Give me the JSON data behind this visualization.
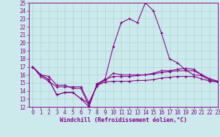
{
  "xlabel": "Windchill (Refroidissement éolien,°C)",
  "xlim": [
    -0.5,
    23
  ],
  "ylim": [
    12,
    25
  ],
  "xticks": [
    0,
    1,
    2,
    3,
    4,
    5,
    6,
    7,
    8,
    9,
    10,
    11,
    12,
    13,
    14,
    15,
    16,
    17,
    18,
    19,
    20,
    21,
    22,
    23
  ],
  "yticks": [
    12,
    13,
    14,
    15,
    16,
    17,
    18,
    19,
    20,
    21,
    22,
    23,
    24,
    25
  ],
  "bg_color": "#cceaec",
  "grid_color": "#aad4d6",
  "line_color": "#880088",
  "label_color": "#880088",
  "lines": [
    {
      "x": [
        0,
        1,
        2,
        3,
        4,
        5,
        6,
        7,
        8,
        9,
        10,
        11,
        12,
        13,
        14,
        15,
        16,
        17,
        18,
        19,
        20,
        21,
        22,
        23
      ],
      "y": [
        17,
        16,
        15.8,
        14.7,
        14.7,
        14.3,
        14.3,
        12.1,
        14.8,
        15.5,
        19.5,
        22.5,
        23.0,
        22.5,
        25.0,
        24.0,
        21.2,
        18.0,
        17.5,
        16.6,
        16.0,
        15.9,
        15.3,
        15.2
      ]
    },
    {
      "x": [
        0,
        1,
        2,
        3,
        4,
        5,
        6,
        7,
        8,
        9,
        10,
        11,
        12,
        13,
        14,
        15,
        16,
        17,
        18,
        19,
        20,
        21,
        22,
        23
      ],
      "y": [
        17,
        16,
        15.4,
        13.5,
        13.8,
        13.8,
        13.0,
        12.0,
        14.9,
        15.3,
        16.2,
        16.0,
        16.0,
        16.0,
        16.0,
        16.2,
        16.5,
        16.5,
        16.7,
        16.8,
        16.7,
        16.0,
        15.5,
        15.2
      ]
    },
    {
      "x": [
        0,
        1,
        2,
        3,
        4,
        5,
        6,
        7,
        8,
        9,
        10,
        11,
        12,
        13,
        14,
        15,
        16,
        17,
        18,
        19,
        20,
        21,
        22,
        23
      ],
      "y": [
        17,
        16,
        15.4,
        13.5,
        13.8,
        13.8,
        13.0,
        12.5,
        14.6,
        15.4,
        15.8,
        15.8,
        15.8,
        15.9,
        16.0,
        16.1,
        16.3,
        16.4,
        16.5,
        16.5,
        16.5,
        16.0,
        15.5,
        15.2
      ]
    },
    {
      "x": [
        0,
        1,
        2,
        3,
        4,
        5,
        6,
        7,
        8,
        9,
        10,
        11,
        12,
        13,
        14,
        15,
        16,
        17,
        18,
        19,
        20,
        21,
        22,
        23
      ],
      "y": [
        17,
        15.8,
        15.2,
        14.5,
        14.5,
        14.5,
        14.5,
        12.5,
        14.7,
        15.1,
        15.2,
        15.2,
        15.2,
        15.3,
        15.3,
        15.4,
        15.6,
        15.7,
        15.8,
        15.8,
        15.8,
        15.5,
        15.2,
        15.1
      ]
    }
  ],
  "tick_labelsize": 5.5,
  "xlabel_fontsize": 6.0,
  "marker": "+",
  "markersize": 3,
  "linewidth": 0.8
}
